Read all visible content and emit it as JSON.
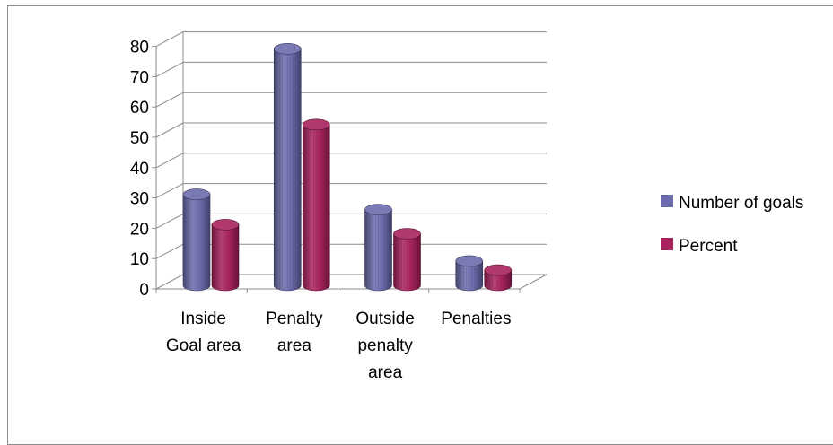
{
  "chart_data": {
    "type": "bar",
    "style": "3d-cylinder",
    "categories": [
      [
        "Inside",
        "Goal area"
      ],
      [
        "Penalty",
        "area"
      ],
      [
        "Outside",
        "penalty",
        "area"
      ],
      [
        "Penalties"
      ]
    ],
    "series": [
      {
        "name": "Number of goals",
        "values": [
          30,
          78,
          25,
          8
        ],
        "color": "#6b6bad"
      },
      {
        "name": "Percent",
        "values": [
          20,
          53,
          17,
          5
        ],
        "color": "#a8225e"
      }
    ],
    "yticks": [
      "0",
      "10",
      "20",
      "30",
      "40",
      "50",
      "60",
      "70",
      "80"
    ],
    "ylim": [
      0,
      80
    ],
    "grid": true,
    "legend_position": "right"
  }
}
